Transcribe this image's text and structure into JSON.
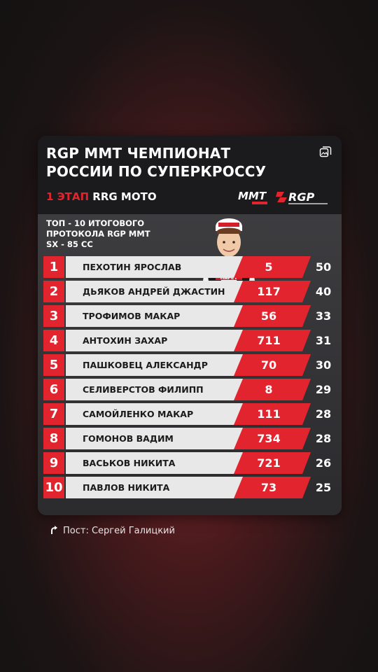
{
  "card": {
    "title_line1": "RGP MMT ЧЕМПИОНАТ",
    "title_line2": "РОССИИ ПО СУПЕРКРОССУ",
    "stage_accent": "1 ЭТАП",
    "stage_rest": " RRG MOTO",
    "subtitle_line1": "ТОП - 10 ИТОГОВОГО",
    "subtitle_line2": "ПРОТОКОЛА RGP MMT",
    "subtitle_line3": "SX - 85 CC",
    "logo_mmt": "MMT",
    "logo_rgp": "RGP",
    "rider_bib": "HAPEY"
  },
  "results": [
    {
      "pos": "1",
      "name": "ПЕХОТИН ЯРОСЛАВ",
      "number": "5",
      "points": "50"
    },
    {
      "pos": "2",
      "name": "ДЬЯКОВ АНДРЕЙ ДЖАСТИН",
      "number": "117",
      "points": "40"
    },
    {
      "pos": "3",
      "name": "ТРОФИМОВ МАКАР",
      "number": "56",
      "points": "33"
    },
    {
      "pos": "4",
      "name": "АНТОХИН ЗАХАР",
      "number": "711",
      "points": "31"
    },
    {
      "pos": "5",
      "name": "ПАШКОВЕЦ АЛЕКСАНДР",
      "number": "70",
      "points": "30"
    },
    {
      "pos": "6",
      "name": "СЕЛИВЕРСТОВ ФИЛИПП",
      "number": "8",
      "points": "29"
    },
    {
      "pos": "7",
      "name": "САМОЙЛЕНКО МАКАР",
      "number": "111",
      "points": "28"
    },
    {
      "pos": "8",
      "name": "ГОМОНОВ ВАДИМ",
      "number": "734",
      "points": "28"
    },
    {
      "pos": "9",
      "name": "ВАСЬКОВ НИКИТА",
      "number": "721",
      "points": "26"
    },
    {
      "pos": "10",
      "name": "ПАВЛОВ НИКИТА",
      "number": "73",
      "points": "25"
    }
  ],
  "post": {
    "label": "Пост: Сергей Галицкий"
  },
  "colors": {
    "accent": "#e2242e",
    "card_bg": "#1d1d1f",
    "name_bar": "#e8e8e8"
  },
  "icons": {
    "gallery": "gallery-icon",
    "share": "share-icon"
  }
}
